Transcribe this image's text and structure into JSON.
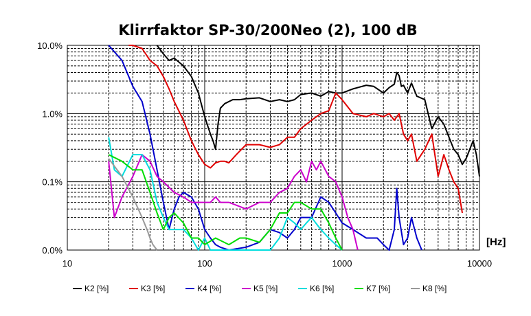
{
  "chart_data": {
    "type": "line",
    "title": "Klirrfaktor SP-30/200Neo (2), 100 dB",
    "x_unit_label": "[Hz]",
    "xscale": "log",
    "yscale": "log",
    "xlim": [
      10,
      10000
    ],
    "ylim": [
      0.01,
      10
    ],
    "x_ticks": [
      {
        "value": 10,
        "label": "10"
      },
      {
        "value": 100,
        "label": "100"
      },
      {
        "value": 1000,
        "label": "1000"
      },
      {
        "value": 10000,
        "label": "10000"
      }
    ],
    "y_ticks": [
      {
        "value": 10,
        "label": "10.0%"
      },
      {
        "value": 1,
        "label": "1.0%"
      },
      {
        "value": 0.1,
        "label": "0.1%"
      },
      {
        "value": 0.01,
        "label": "0.0%"
      }
    ],
    "grid": true,
    "legend_position": "bottom",
    "series": [
      {
        "name": "K2 [%]",
        "color": "#000000",
        "x": [
          45,
          50,
          55,
          60,
          70,
          80,
          90,
          100,
          110,
          115,
          120,
          125,
          130,
          140,
          160,
          180,
          200,
          250,
          300,
          350,
          400,
          450,
          500,
          600,
          700,
          800,
          900,
          1000,
          1200,
          1500,
          1700,
          2000,
          2200,
          2400,
          2500,
          2600,
          2700,
          2800,
          3000,
          3200,
          3500,
          4000,
          4500,
          5000,
          5500,
          6000,
          6500,
          7000,
          7500,
          8000,
          8500,
          9000,
          9500,
          10000
        ],
        "y": [
          10,
          7.5,
          6.0,
          6.5,
          5.0,
          3.5,
          2.0,
          0.9,
          0.5,
          0.4,
          0.3,
          0.7,
          1.2,
          1.4,
          1.6,
          1.6,
          1.65,
          1.7,
          1.5,
          1.6,
          1.5,
          1.6,
          1.9,
          2.0,
          1.8,
          2.1,
          2.0,
          2.0,
          2.3,
          2.6,
          2.5,
          2.0,
          2.4,
          2.7,
          4.0,
          3.6,
          2.5,
          2.6,
          2.0,
          2.8,
          1.8,
          1.6,
          0.6,
          0.9,
          0.7,
          0.45,
          0.3,
          0.25,
          0.18,
          0.22,
          0.3,
          0.4,
          0.25,
          0.12
        ]
      },
      {
        "name": "K3 [%]",
        "color": "#e00000",
        "x": [
          28,
          30,
          35,
          40,
          45,
          50,
          55,
          60,
          70,
          80,
          90,
          100,
          110,
          120,
          130,
          140,
          150,
          170,
          200,
          250,
          300,
          350,
          400,
          450,
          500,
          600,
          700,
          800,
          900,
          1000,
          1200,
          1500,
          1700,
          2000,
          2200,
          2400,
          2600,
          2800,
          3000,
          3200,
          3500,
          4000,
          4500,
          5000,
          5500,
          6000,
          6500,
          7000,
          7500
        ],
        "y": [
          10,
          10,
          9,
          6,
          5,
          3.5,
          2.3,
          1.5,
          0.8,
          0.4,
          0.25,
          0.18,
          0.16,
          0.19,
          0.2,
          0.2,
          0.19,
          0.25,
          0.35,
          0.35,
          0.32,
          0.35,
          0.45,
          0.45,
          0.6,
          0.8,
          1.0,
          1.1,
          2.0,
          1.6,
          1.0,
          0.9,
          1.0,
          0.9,
          1.0,
          0.8,
          1.0,
          0.5,
          0.4,
          0.5,
          0.2,
          0.3,
          0.5,
          0.12,
          0.25,
          0.15,
          0.1,
          0.08,
          0.035
        ]
      },
      {
        "name": "K4 [%]",
        "color": "#0000cc",
        "x": [
          20,
          25,
          30,
          35,
          40,
          45,
          50,
          55,
          60,
          65,
          70,
          80,
          90,
          100,
          110,
          120,
          130,
          150,
          200,
          250,
          300,
          350,
          400,
          450,
          500,
          600,
          700,
          800,
          900,
          1000,
          1200,
          1500,
          1800,
          2000,
          2200,
          2400,
          2500,
          2600,
          2800,
          3000,
          3200,
          3500,
          3800
        ],
        "y": [
          10,
          6,
          2.5,
          1.5,
          0.5,
          0.15,
          0.05,
          0.02,
          0.04,
          0.06,
          0.07,
          0.06,
          0.04,
          0.02,
          0.015,
          0.012,
          0.011,
          0.01,
          0.011,
          0.013,
          0.02,
          0.018,
          0.015,
          0.02,
          0.03,
          0.03,
          0.06,
          0.05,
          0.035,
          0.025,
          0.02,
          0.015,
          0.015,
          0.012,
          0.01,
          0.02,
          0.08,
          0.03,
          0.012,
          0.015,
          0.03,
          0.015,
          0.01
        ]
      },
      {
        "name": "K5 [%]",
        "color": "#cc00cc",
        "x": [
          20,
          22,
          25,
          30,
          35,
          40,
          45,
          50,
          60,
          70,
          80,
          90,
          100,
          110,
          120,
          130,
          150,
          200,
          250,
          300,
          350,
          400,
          450,
          500,
          550,
          600,
          650,
          700,
          800,
          900,
          1000,
          1100,
          1200,
          1300
        ],
        "y": [
          0.2,
          0.03,
          0.06,
          0.12,
          0.25,
          0.2,
          0.12,
          0.1,
          0.07,
          0.06,
          0.05,
          0.05,
          0.05,
          0.05,
          0.06,
          0.05,
          0.05,
          0.04,
          0.05,
          0.05,
          0.07,
          0.08,
          0.12,
          0.15,
          0.1,
          0.2,
          0.15,
          0.2,
          0.12,
          0.1,
          0.06,
          0.03,
          0.02,
          0.01
        ]
      },
      {
        "name": "K6 [%]",
        "color": "#00dddd",
        "x": [
          20,
          22,
          25,
          30,
          35,
          40,
          45,
          50,
          55,
          60,
          70,
          80,
          90,
          100,
          110,
          120,
          300,
          350,
          400,
          450,
          500,
          550,
          600,
          700,
          800,
          900,
          1000
        ],
        "y": [
          0.45,
          0.15,
          0.12,
          0.25,
          0.25,
          0.15,
          0.05,
          0.03,
          0.02,
          0.02,
          0.02,
          0.015,
          0.01,
          0.015,
          0.01,
          0.01,
          0.01,
          0.015,
          0.03,
          0.025,
          0.02,
          0.025,
          0.03,
          0.02,
          0.015,
          0.012,
          0.01
        ]
      },
      {
        "name": "K7 [%]",
        "color": "#00dd00",
        "x": [
          20,
          25,
          30,
          35,
          40,
          45,
          50,
          55,
          60,
          70,
          80,
          90,
          100,
          120,
          150,
          180,
          200,
          250,
          300,
          350,
          400,
          450,
          500,
          600,
          700,
          800,
          900,
          1000
        ],
        "y": [
          0.25,
          0.2,
          0.15,
          0.15,
          0.07,
          0.035,
          0.02,
          0.03,
          0.035,
          0.025,
          0.015,
          0.015,
          0.012,
          0.015,
          0.012,
          0.015,
          0.015,
          0.013,
          0.02,
          0.035,
          0.035,
          0.05,
          0.05,
          0.04,
          0.04,
          0.025,
          0.015,
          0.01
        ]
      },
      {
        "name": "K8 [%]",
        "color": "#999999",
        "x": [
          20,
          25,
          30,
          35,
          38,
          40,
          42,
          45
        ],
        "y": [
          0.22,
          0.12,
          0.06,
          0.03,
          0.02,
          0.015,
          0.012,
          0.01
        ]
      }
    ]
  }
}
